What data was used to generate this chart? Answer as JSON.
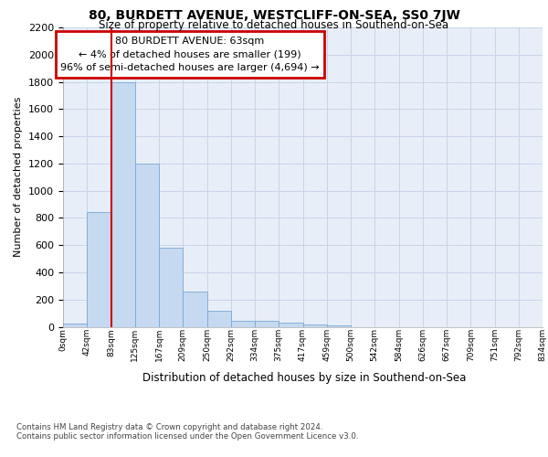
{
  "title_line1": "80, BURDETT AVENUE, WESTCLIFF-ON-SEA, SS0 7JW",
  "title_line2": "Size of property relative to detached houses in Southend-on-Sea",
  "xlabel": "Distribution of detached houses by size in Southend-on-Sea",
  "ylabel": "Number of detached properties",
  "bar_values": [
    25,
    840,
    1800,
    1200,
    580,
    260,
    120,
    45,
    45,
    30,
    20,
    10,
    0,
    0,
    0,
    0,
    0,
    0,
    0,
    0
  ],
  "bin_labels": [
    "0sqm",
    "42sqm",
    "83sqm",
    "125sqm",
    "167sqm",
    "209sqm",
    "250sqm",
    "292sqm",
    "334sqm",
    "375sqm",
    "417sqm",
    "459sqm",
    "500sqm",
    "542sqm",
    "584sqm",
    "626sqm",
    "667sqm",
    "709sqm",
    "751sqm",
    "792sqm",
    "834sqm"
  ],
  "bar_color": "#c5d9f0",
  "bar_edge_color": "#7aa8d4",
  "grid_color": "#c8d4e8",
  "background_color": "#e8eef8",
  "annotation_text": "80 BURDETT AVENUE: 63sqm\n← 4% of detached houses are smaller (199)\n96% of semi-detached houses are larger (4,694) →",
  "annotation_box_color": "#ffffff",
  "annotation_box_edge": "#cc0000",
  "vline_color": "#cc0000",
  "ylim": [
    0,
    2200
  ],
  "yticks": [
    0,
    200,
    400,
    600,
    800,
    1000,
    1200,
    1400,
    1600,
    1800,
    2000,
    2200
  ],
  "footnote1": "Contains HM Land Registry data © Crown copyright and database right 2024.",
  "footnote2": "Contains public sector information licensed under the Open Government Licence v3.0."
}
